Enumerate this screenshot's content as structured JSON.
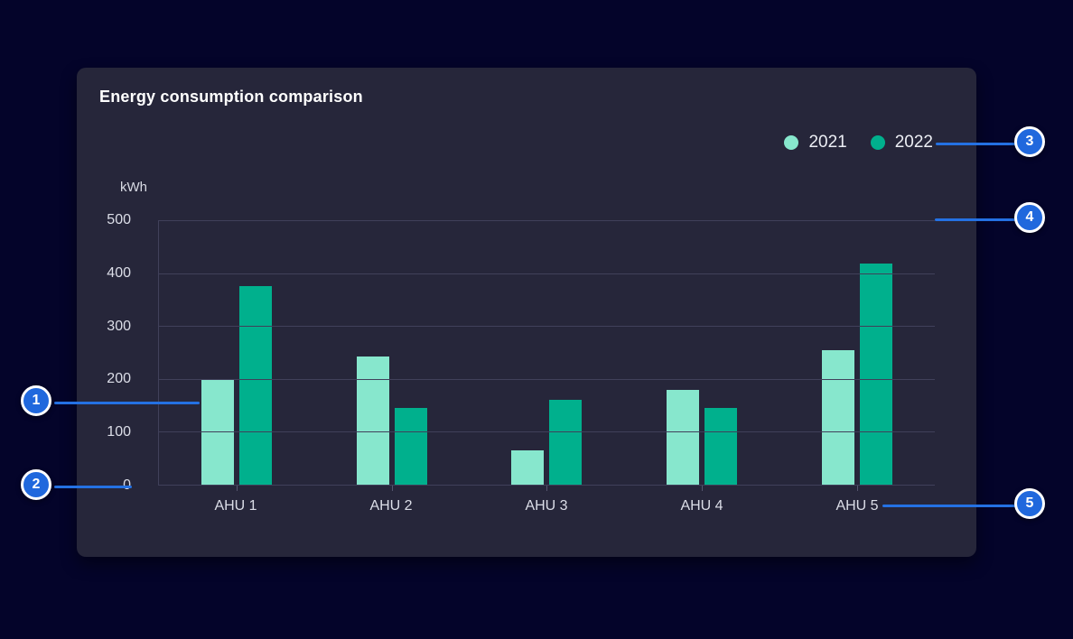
{
  "page": {
    "background": "#04042a"
  },
  "card": {
    "background": "#26263a",
    "title": "Energy consumption comparison"
  },
  "chart_data": {
    "type": "bar",
    "title": "Energy consumption comparison",
    "ylabel": "kWh",
    "xlabel": "",
    "categories": [
      "AHU 1",
      "AHU 2",
      "AHU 3",
      "AHU 4",
      "AHU 5"
    ],
    "series": [
      {
        "name": "2021",
        "color": "#87e7cd",
        "values": [
          200,
          243,
          65,
          180,
          255
        ]
      },
      {
        "name": "2022",
        "color": "#00b08d",
        "values": [
          375,
          145,
          160,
          145,
          418
        ]
      }
    ],
    "ylim": [
      0,
      500
    ],
    "yticks": [
      0,
      100,
      200,
      300,
      400,
      500
    ],
    "grid": "horizontal",
    "gridline_color": "#40405a",
    "legend_position": "top-right"
  },
  "callouts": {
    "accent_color": "#2068dd",
    "line_color": "#2471e3",
    "items": [
      {
        "label": "1"
      },
      {
        "label": "2"
      },
      {
        "label": "3"
      },
      {
        "label": "4"
      },
      {
        "label": "5"
      }
    ]
  }
}
